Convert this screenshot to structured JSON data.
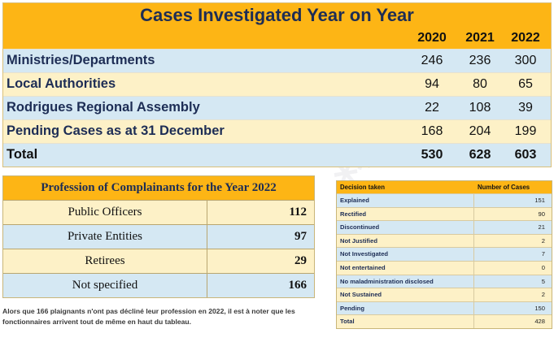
{
  "top": {
    "title": "Cases Investigated Year on Year",
    "years": [
      "2020",
      "2021",
      "2022"
    ],
    "rows": [
      {
        "label": "Ministries/Departments",
        "values": [
          "246",
          "236",
          "300"
        ]
      },
      {
        "label": "Local Authorities",
        "values": [
          "94",
          "80",
          "65"
        ]
      },
      {
        "label": "Rodrigues Regional Assembly",
        "values": [
          "22",
          "108",
          "39"
        ]
      },
      {
        "label": "Pending Cases as at 31 December",
        "values": [
          "168",
          "204",
          "199"
        ]
      },
      {
        "label": "Total",
        "values": [
          "530",
          "628",
          "603"
        ]
      }
    ]
  },
  "profession": {
    "title": "Profession of Complainants for the Year 2022",
    "rows": [
      {
        "name": "Public Officers",
        "value": "112"
      },
      {
        "name": "Private Entities",
        "value": "97"
      },
      {
        "name": "Retirees",
        "value": "29"
      },
      {
        "name": "Not specified",
        "value": "166"
      }
    ]
  },
  "note": "Alors que 166 plaignants n'ont pas décliné leur profession en 2022, il est à noter que les fonctionnaires arrivent tout de même en haut du tableau.",
  "decisions": {
    "header_decision": "Decision taken",
    "header_cases": "Number of Cases",
    "rows": [
      {
        "label": "Explained",
        "value": "151"
      },
      {
        "label": "Rectified",
        "value": "90"
      },
      {
        "label": "Discontinued",
        "value": "21"
      },
      {
        "label": "Not Justified",
        "value": "2"
      },
      {
        "label": "Not Investigated",
        "value": "7"
      },
      {
        "label": "Not entertained",
        "value": "0"
      },
      {
        "label": "No maladministration disclosed",
        "value": "5"
      },
      {
        "label": "Not Sustained",
        "value": "2"
      },
      {
        "label": "Pending",
        "value": "150"
      },
      {
        "label": "Total",
        "value": "428"
      }
    ]
  },
  "colors": {
    "header_orange": "#fdb515",
    "row_blue": "#d5e8f3",
    "row_cream": "#fdf1c7",
    "navy_text": "#1d2d55"
  }
}
